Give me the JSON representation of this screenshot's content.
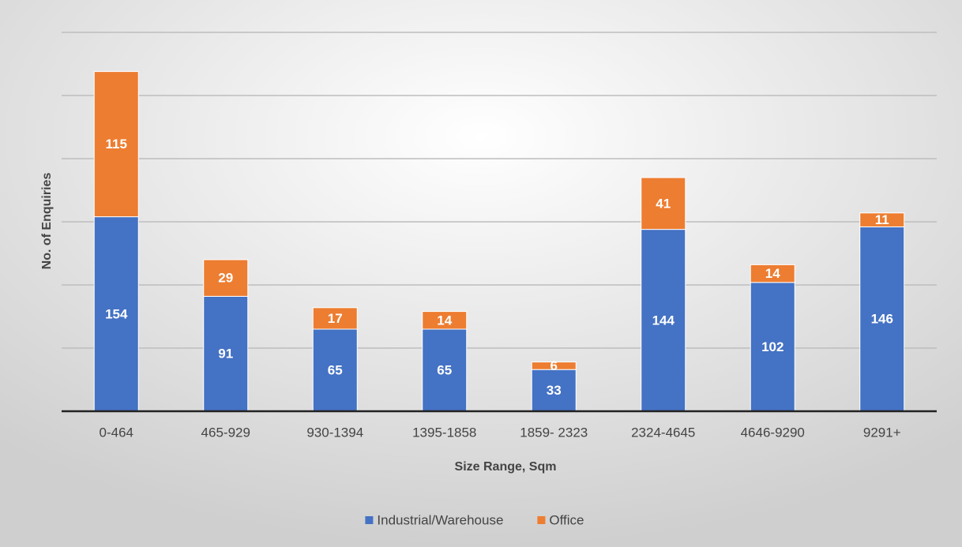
{
  "chart_data": {
    "type": "stacked_bar",
    "x_label": "Size Range, Sqm",
    "y_label": "No. of Enquiries",
    "categories": [
      "0-464",
      "465-929",
      "930-1394",
      "1395-1858",
      "1859- 2323",
      "2324-4645",
      "4646-9290",
      "9291+"
    ],
    "series": [
      {
        "name": "Industrial/Warehouse",
        "color": "#4472c4",
        "values": [
          154,
          91,
          65,
          65,
          33,
          144,
          102,
          146
        ]
      },
      {
        "name": "Office",
        "color": "#ed7d31",
        "values": [
          115,
          29,
          17,
          14,
          6,
          41,
          14,
          11
        ]
      }
    ],
    "ylim": [
      0,
      300
    ],
    "yticks": [
      0,
      50,
      100,
      150,
      200,
      250,
      300
    ],
    "grid": true,
    "legend": "bottom"
  }
}
